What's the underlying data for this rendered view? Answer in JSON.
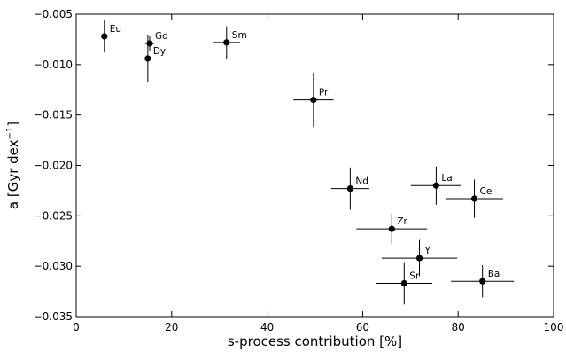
{
  "chart_data": {
    "type": "scatter",
    "title": "",
    "xlabel": "s-process contribution [%]",
    "ylabel": {
      "prefix": "a [Gyr dex",
      "superscript": "−1",
      "suffix": "]"
    },
    "xlim": [
      0,
      100
    ],
    "ylim": [
      -0.035,
      -0.005
    ],
    "grid": false,
    "x_ticks": [
      0,
      20,
      40,
      60,
      80,
      100
    ],
    "x_tick_labels": [
      "0",
      "20",
      "40",
      "60",
      "80",
      "100"
    ],
    "y_ticks": [
      -0.035,
      -0.03,
      -0.025,
      -0.02,
      -0.015,
      -0.01,
      -0.005
    ],
    "y_tick_labels": [
      "−0.035",
      "−0.030",
      "−0.025",
      "−0.020",
      "−0.015",
      "−0.010",
      "−0.005"
    ],
    "points": [
      {
        "label": "Eu",
        "x": 5.9,
        "y": -0.0072,
        "xerr": 0.0,
        "yerr": 0.0016
      },
      {
        "label": "Gd",
        "x": 15.4,
        "y": -0.0079,
        "xerr": 1.0,
        "yerr": 0.0007
      },
      {
        "label": "Dy",
        "x": 15.0,
        "y": -0.0094,
        "xerr": 0.0,
        "yerr": 0.0023
      },
      {
        "label": "Sm",
        "x": 31.5,
        "y": -0.0078,
        "xerr": 2.8,
        "yerr": 0.0016
      },
      {
        "label": "Pr",
        "x": 49.7,
        "y": -0.0135,
        "xerr": 4.2,
        "yerr": 0.0027
      },
      {
        "label": "Nd",
        "x": 57.4,
        "y": -0.0223,
        "xerr": 4.0,
        "yerr": 0.0021
      },
      {
        "label": "La",
        "x": 75.4,
        "y": -0.022,
        "xerr": 5.3,
        "yerr": 0.0019
      },
      {
        "label": "Ce",
        "x": 83.4,
        "y": -0.0233,
        "xerr": 6.0,
        "yerr": 0.0019
      },
      {
        "label": "Zr",
        "x": 66.1,
        "y": -0.0263,
        "xerr": 7.4,
        "yerr": 0.0015
      },
      {
        "label": "Y",
        "x": 71.9,
        "y": -0.0292,
        "xerr": 7.9,
        "yerr": 0.0018
      },
      {
        "label": "Sr",
        "x": 68.7,
        "y": -0.0317,
        "xerr": 5.9,
        "yerr": 0.0021
      },
      {
        "label": "Ba",
        "x": 85.1,
        "y": -0.0315,
        "xerr": 6.6,
        "yerr": 0.0016
      }
    ]
  }
}
